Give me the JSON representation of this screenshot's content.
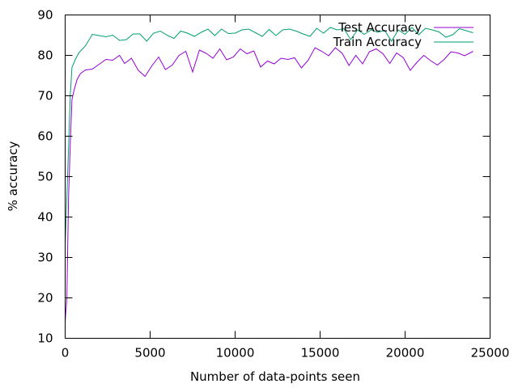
{
  "chart_data": {
    "type": "line",
    "title": "",
    "xlabel": "Number of data-points seen",
    "ylabel": "% accuracy",
    "xlim": [
      0,
      25000
    ],
    "ylim": [
      10,
      90
    ],
    "x_ticks": [
      0,
      5000,
      10000,
      15000,
      20000,
      25000
    ],
    "y_ticks": [
      10,
      20,
      30,
      40,
      50,
      60,
      70,
      80,
      90
    ],
    "grid": false,
    "legend_position": "top-right",
    "series": [
      {
        "name": "Test Accuracy",
        "color": "#9400d3",
        "points": [
          [
            0,
            14
          ],
          [
            100,
            20
          ],
          [
            200,
            45
          ],
          [
            300,
            58
          ],
          [
            400,
            69
          ],
          [
            500,
            71
          ],
          [
            700,
            74
          ],
          [
            900,
            75.5
          ],
          [
            1200,
            76.4
          ],
          [
            1600,
            76.6
          ],
          [
            2000,
            77.8
          ],
          [
            2400,
            79.0
          ],
          [
            2800,
            78.8
          ],
          [
            3200,
            80.0
          ],
          [
            3500,
            78.0
          ],
          [
            3900,
            79.3
          ],
          [
            4300,
            76.3
          ],
          [
            4700,
            74.8
          ],
          [
            5100,
            77.4
          ],
          [
            5500,
            79.6
          ],
          [
            5900,
            76.5
          ],
          [
            6300,
            77.6
          ],
          [
            6700,
            80.0
          ],
          [
            7100,
            81.0
          ],
          [
            7500,
            75.9
          ],
          [
            7900,
            81.3
          ],
          [
            8300,
            80.5
          ],
          [
            8700,
            79.3
          ],
          [
            9100,
            81.6
          ],
          [
            9500,
            78.9
          ],
          [
            9900,
            79.6
          ],
          [
            10300,
            81.6
          ],
          [
            10700,
            80.4
          ],
          [
            11100,
            81.1
          ],
          [
            11500,
            77.1
          ],
          [
            11900,
            78.6
          ],
          [
            12300,
            77.9
          ],
          [
            12700,
            79.3
          ],
          [
            13100,
            79.0
          ],
          [
            13500,
            79.4
          ],
          [
            13900,
            76.9
          ],
          [
            14300,
            78.8
          ],
          [
            14700,
            81.9
          ],
          [
            15100,
            81.0
          ],
          [
            15500,
            79.9
          ],
          [
            15900,
            81.9
          ],
          [
            16300,
            80.5
          ],
          [
            16700,
            77.5
          ],
          [
            17100,
            80.0
          ],
          [
            17500,
            77.9
          ],
          [
            17900,
            80.9
          ],
          [
            18300,
            81.6
          ],
          [
            18700,
            80.4
          ],
          [
            19100,
            78.0
          ],
          [
            19500,
            80.6
          ],
          [
            19900,
            79.4
          ],
          [
            20300,
            76.3
          ],
          [
            20700,
            78.3
          ],
          [
            21100,
            80.0
          ],
          [
            21500,
            78.7
          ],
          [
            21900,
            77.6
          ],
          [
            22300,
            79.0
          ],
          [
            22700,
            80.9
          ],
          [
            23100,
            80.6
          ],
          [
            23500,
            79.9
          ],
          [
            24000,
            81.0
          ]
        ]
      },
      {
        "name": "Train Accuracy",
        "color": "#009e73",
        "points": [
          [
            0,
            33
          ],
          [
            100,
            45
          ],
          [
            200,
            57
          ],
          [
            300,
            70
          ],
          [
            400,
            77
          ],
          [
            600,
            79
          ],
          [
            800,
            80.6
          ],
          [
            1200,
            82.4
          ],
          [
            1600,
            85.2
          ],
          [
            2000,
            84.9
          ],
          [
            2400,
            84.6
          ],
          [
            2800,
            85.0
          ],
          [
            3200,
            83.7
          ],
          [
            3600,
            83.9
          ],
          [
            4000,
            85.3
          ],
          [
            4400,
            85.3
          ],
          [
            4800,
            83.5
          ],
          [
            5200,
            85.5
          ],
          [
            5600,
            86.0
          ],
          [
            6000,
            85.0
          ],
          [
            6400,
            84.2
          ],
          [
            6800,
            86.0
          ],
          [
            7200,
            85.5
          ],
          [
            7600,
            84.7
          ],
          [
            8000,
            85.7
          ],
          [
            8400,
            86.5
          ],
          [
            8800,
            84.9
          ],
          [
            9200,
            86.5
          ],
          [
            9600,
            85.4
          ],
          [
            10000,
            85.5
          ],
          [
            10400,
            86.3
          ],
          [
            10800,
            86.5
          ],
          [
            11200,
            85.6
          ],
          [
            11600,
            84.7
          ],
          [
            12000,
            86.4
          ],
          [
            12400,
            84.9
          ],
          [
            12800,
            86.3
          ],
          [
            13200,
            86.5
          ],
          [
            13600,
            86.0
          ],
          [
            14000,
            85.3
          ],
          [
            14400,
            84.7
          ],
          [
            14800,
            86.7
          ],
          [
            15200,
            85.5
          ],
          [
            15600,
            86.9
          ],
          [
            16000,
            86.3
          ],
          [
            16400,
            86.6
          ],
          [
            16800,
            83.9
          ],
          [
            17200,
            86.3
          ],
          [
            17600,
            85.2
          ],
          [
            18000,
            86.3
          ],
          [
            18400,
            85.7
          ],
          [
            18800,
            86.2
          ],
          [
            19200,
            83.5
          ],
          [
            19600,
            86.3
          ],
          [
            20000,
            85.2
          ],
          [
            20400,
            86.9
          ],
          [
            20800,
            85.1
          ],
          [
            21200,
            86.7
          ],
          [
            21600,
            86.3
          ],
          [
            22000,
            85.8
          ],
          [
            22400,
            84.5
          ],
          [
            22800,
            85.1
          ],
          [
            23200,
            86.6
          ],
          [
            23600,
            86.1
          ],
          [
            24000,
            85.6
          ]
        ]
      }
    ]
  }
}
